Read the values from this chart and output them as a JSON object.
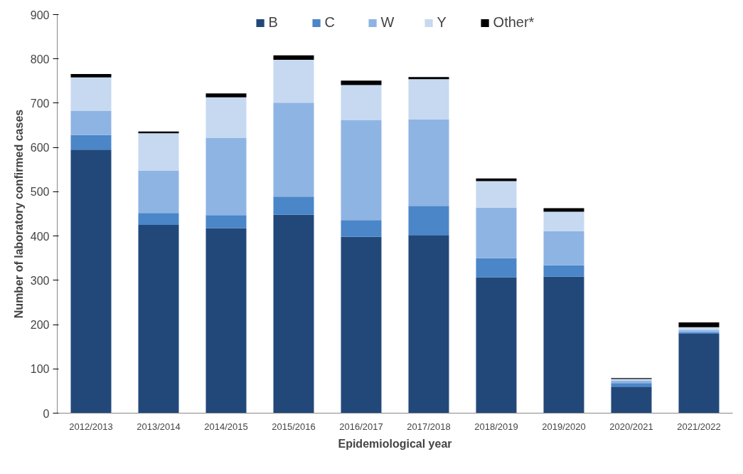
{
  "chart_data": {
    "type": "bar",
    "stacked": true,
    "xlabel": "Epidemiological year",
    "ylabel": "Number of laboratory confirmed cases",
    "categories": [
      "2012/2013",
      "2013/2014",
      "2014/2015",
      "2015/2016",
      "2016/2017",
      "2017/2018",
      "2018/2019",
      "2019/2020",
      "2020/2021",
      "2021/2022"
    ],
    "series": [
      {
        "name": "B",
        "color": "#22487a",
        "values": [
          595,
          425,
          418,
          448,
          398,
          402,
          307,
          308,
          60,
          179
        ]
      },
      {
        "name": "C",
        "color": "#4a86c8",
        "values": [
          33,
          27,
          29,
          41,
          38,
          66,
          43,
          26,
          8,
          4
        ]
      },
      {
        "name": "W",
        "color": "#8eb4e3",
        "values": [
          55,
          96,
          175,
          212,
          226,
          195,
          114,
          77,
          6,
          5
        ]
      },
      {
        "name": "Y",
        "color": "#c6d9f1",
        "values": [
          75,
          84,
          91,
          97,
          79,
          91,
          60,
          44,
          3,
          6
        ]
      },
      {
        "name": "Other*",
        "color": "#000000",
        "values": [
          8,
          4,
          9,
          10,
          10,
          5,
          6,
          8,
          2,
          11
        ]
      }
    ],
    "ylim": [
      0,
      900
    ],
    "yticks": [
      0,
      100,
      200,
      300,
      400,
      500,
      600,
      700,
      800,
      900
    ],
    "legend": "top"
  }
}
